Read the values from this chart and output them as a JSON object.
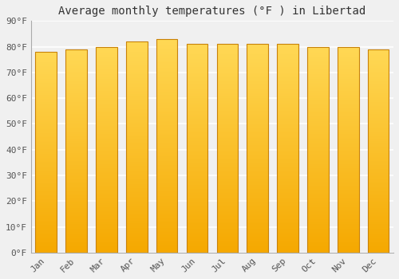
{
  "title": "Average monthly temperatures (°F ) in Libertad",
  "months": [
    "Jan",
    "Feb",
    "Mar",
    "Apr",
    "May",
    "Jun",
    "Jul",
    "Aug",
    "Sep",
    "Oct",
    "Nov",
    "Dec"
  ],
  "values": [
    78,
    79,
    80,
    82,
    83,
    81,
    81,
    81,
    81,
    80,
    80,
    79
  ],
  "ylim": [
    0,
    90
  ],
  "yticks": [
    0,
    10,
    20,
    30,
    40,
    50,
    60,
    70,
    80,
    90
  ],
  "ytick_labels": [
    "0°F",
    "10°F",
    "20°F",
    "30°F",
    "40°F",
    "50°F",
    "60°F",
    "70°F",
    "80°F",
    "90°F"
  ],
  "background_color": "#f0f0f0",
  "grid_color": "#ffffff",
  "title_fontsize": 10,
  "tick_fontsize": 8,
  "bar_width": 0.7,
  "bar_color_bottom": "#F5A800",
  "bar_color_top": "#FFD84D",
  "bar_edge_color": "#C8820A"
}
